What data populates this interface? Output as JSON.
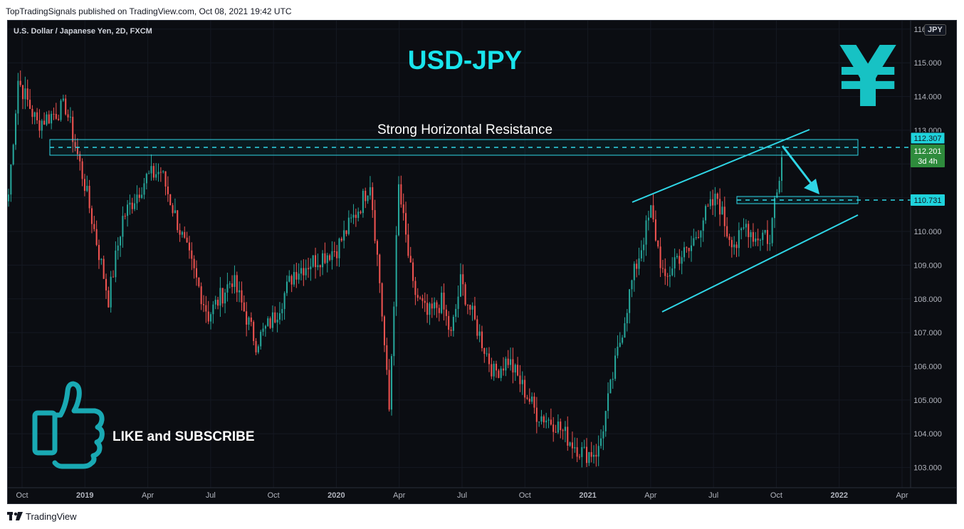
{
  "header": {
    "published": "TopTradingSignals published on TradingView.com, Oct 08, 2021 19:42 UTC"
  },
  "footer": {
    "brand": "TradingView"
  },
  "chart_data": {
    "type": "candlestick",
    "symbol_line": "U.S. Dollar / Japanese Yen, 2D, FXCM",
    "currency_badge": "JPY",
    "title": "USD-JPY",
    "annotations": {
      "resistance_label": "Strong Horizontal Resistance",
      "cta_label": "LIKE and SUBSCRIBE",
      "yen_symbol": "¥"
    },
    "price_labels": {
      "resistance": "112.307",
      "last": "112.201",
      "countdown": "3d 4h",
      "support": "110.731"
    },
    "y_axis": {
      "ylim": [
        102.4,
        116.25
      ],
      "ticks": [
        "103.000",
        "104.000",
        "105.000",
        "106.000",
        "107.000",
        "108.000",
        "109.000",
        "110.000",
        "111.000",
        "112.000",
        "113.000",
        "114.000",
        "115.000",
        "116.000"
      ]
    },
    "x_axis": {
      "ticks": [
        "Oct",
        "2019",
        "Apr",
        "Jul",
        "Oct",
        "2020",
        "Apr",
        "Jul",
        "Oct",
        "2021",
        "Apr",
        "Jul",
        "Oct",
        "2022",
        "Apr"
      ],
      "bold_ticks": [
        "2019",
        "2020",
        "2021",
        "2022"
      ]
    },
    "guide_points": [
      {
        "i": 0,
        "p": 111.1
      },
      {
        "i": 4,
        "p": 114.5
      },
      {
        "i": 12,
        "p": 113.2
      },
      {
        "i": 24,
        "p": 113.7
      },
      {
        "i": 32,
        "p": 111.4
      },
      {
        "i": 42,
        "p": 108.0
      },
      {
        "i": 48,
        "p": 110.4
      },
      {
        "i": 58,
        "p": 111.6
      },
      {
        "i": 64,
        "p": 111.8
      },
      {
        "i": 74,
        "p": 109.6
      },
      {
        "i": 84,
        "p": 107.5
      },
      {
        "i": 94,
        "p": 108.6
      },
      {
        "i": 104,
        "p": 106.7
      },
      {
        "i": 112,
        "p": 107.5
      },
      {
        "i": 120,
        "p": 108.8
      },
      {
        "i": 130,
        "p": 109.2
      },
      {
        "i": 138,
        "p": 109.5
      },
      {
        "i": 148,
        "p": 110.8
      },
      {
        "i": 152,
        "p": 111.5
      },
      {
        "i": 156,
        "p": 108.5
      },
      {
        "i": 160,
        "p": 104.7
      },
      {
        "i": 164,
        "p": 111.3
      },
      {
        "i": 170,
        "p": 108.3
      },
      {
        "i": 176,
        "p": 107.5
      },
      {
        "i": 182,
        "p": 107.9
      },
      {
        "i": 186,
        "p": 106.9
      },
      {
        "i": 190,
        "p": 108.5
      },
      {
        "i": 196,
        "p": 107.3
      },
      {
        "i": 204,
        "p": 105.8
      },
      {
        "i": 210,
        "p": 106.2
      },
      {
        "i": 222,
        "p": 104.6
      },
      {
        "i": 230,
        "p": 104.3
      },
      {
        "i": 236,
        "p": 103.8
      },
      {
        "i": 242,
        "p": 103.4
      },
      {
        "i": 248,
        "p": 103.5
      },
      {
        "i": 254,
        "p": 105.7
      },
      {
        "i": 262,
        "p": 108.5
      },
      {
        "i": 270,
        "p": 110.6
      },
      {
        "i": 276,
        "p": 108.4
      },
      {
        "i": 280,
        "p": 109.2
      },
      {
        "i": 286,
        "p": 109.4
      },
      {
        "i": 292,
        "p": 110.4
      },
      {
        "i": 298,
        "p": 111.0
      },
      {
        "i": 302,
        "p": 110.0
      },
      {
        "i": 306,
        "p": 109.6
      },
      {
        "i": 310,
        "p": 110.2
      },
      {
        "i": 314,
        "p": 109.8
      },
      {
        "i": 318,
        "p": 110.0
      },
      {
        "i": 320,
        "p": 109.6
      },
      {
        "i": 322,
        "p": 111.0
      },
      {
        "i": 325,
        "p": 112.2
      }
    ]
  }
}
